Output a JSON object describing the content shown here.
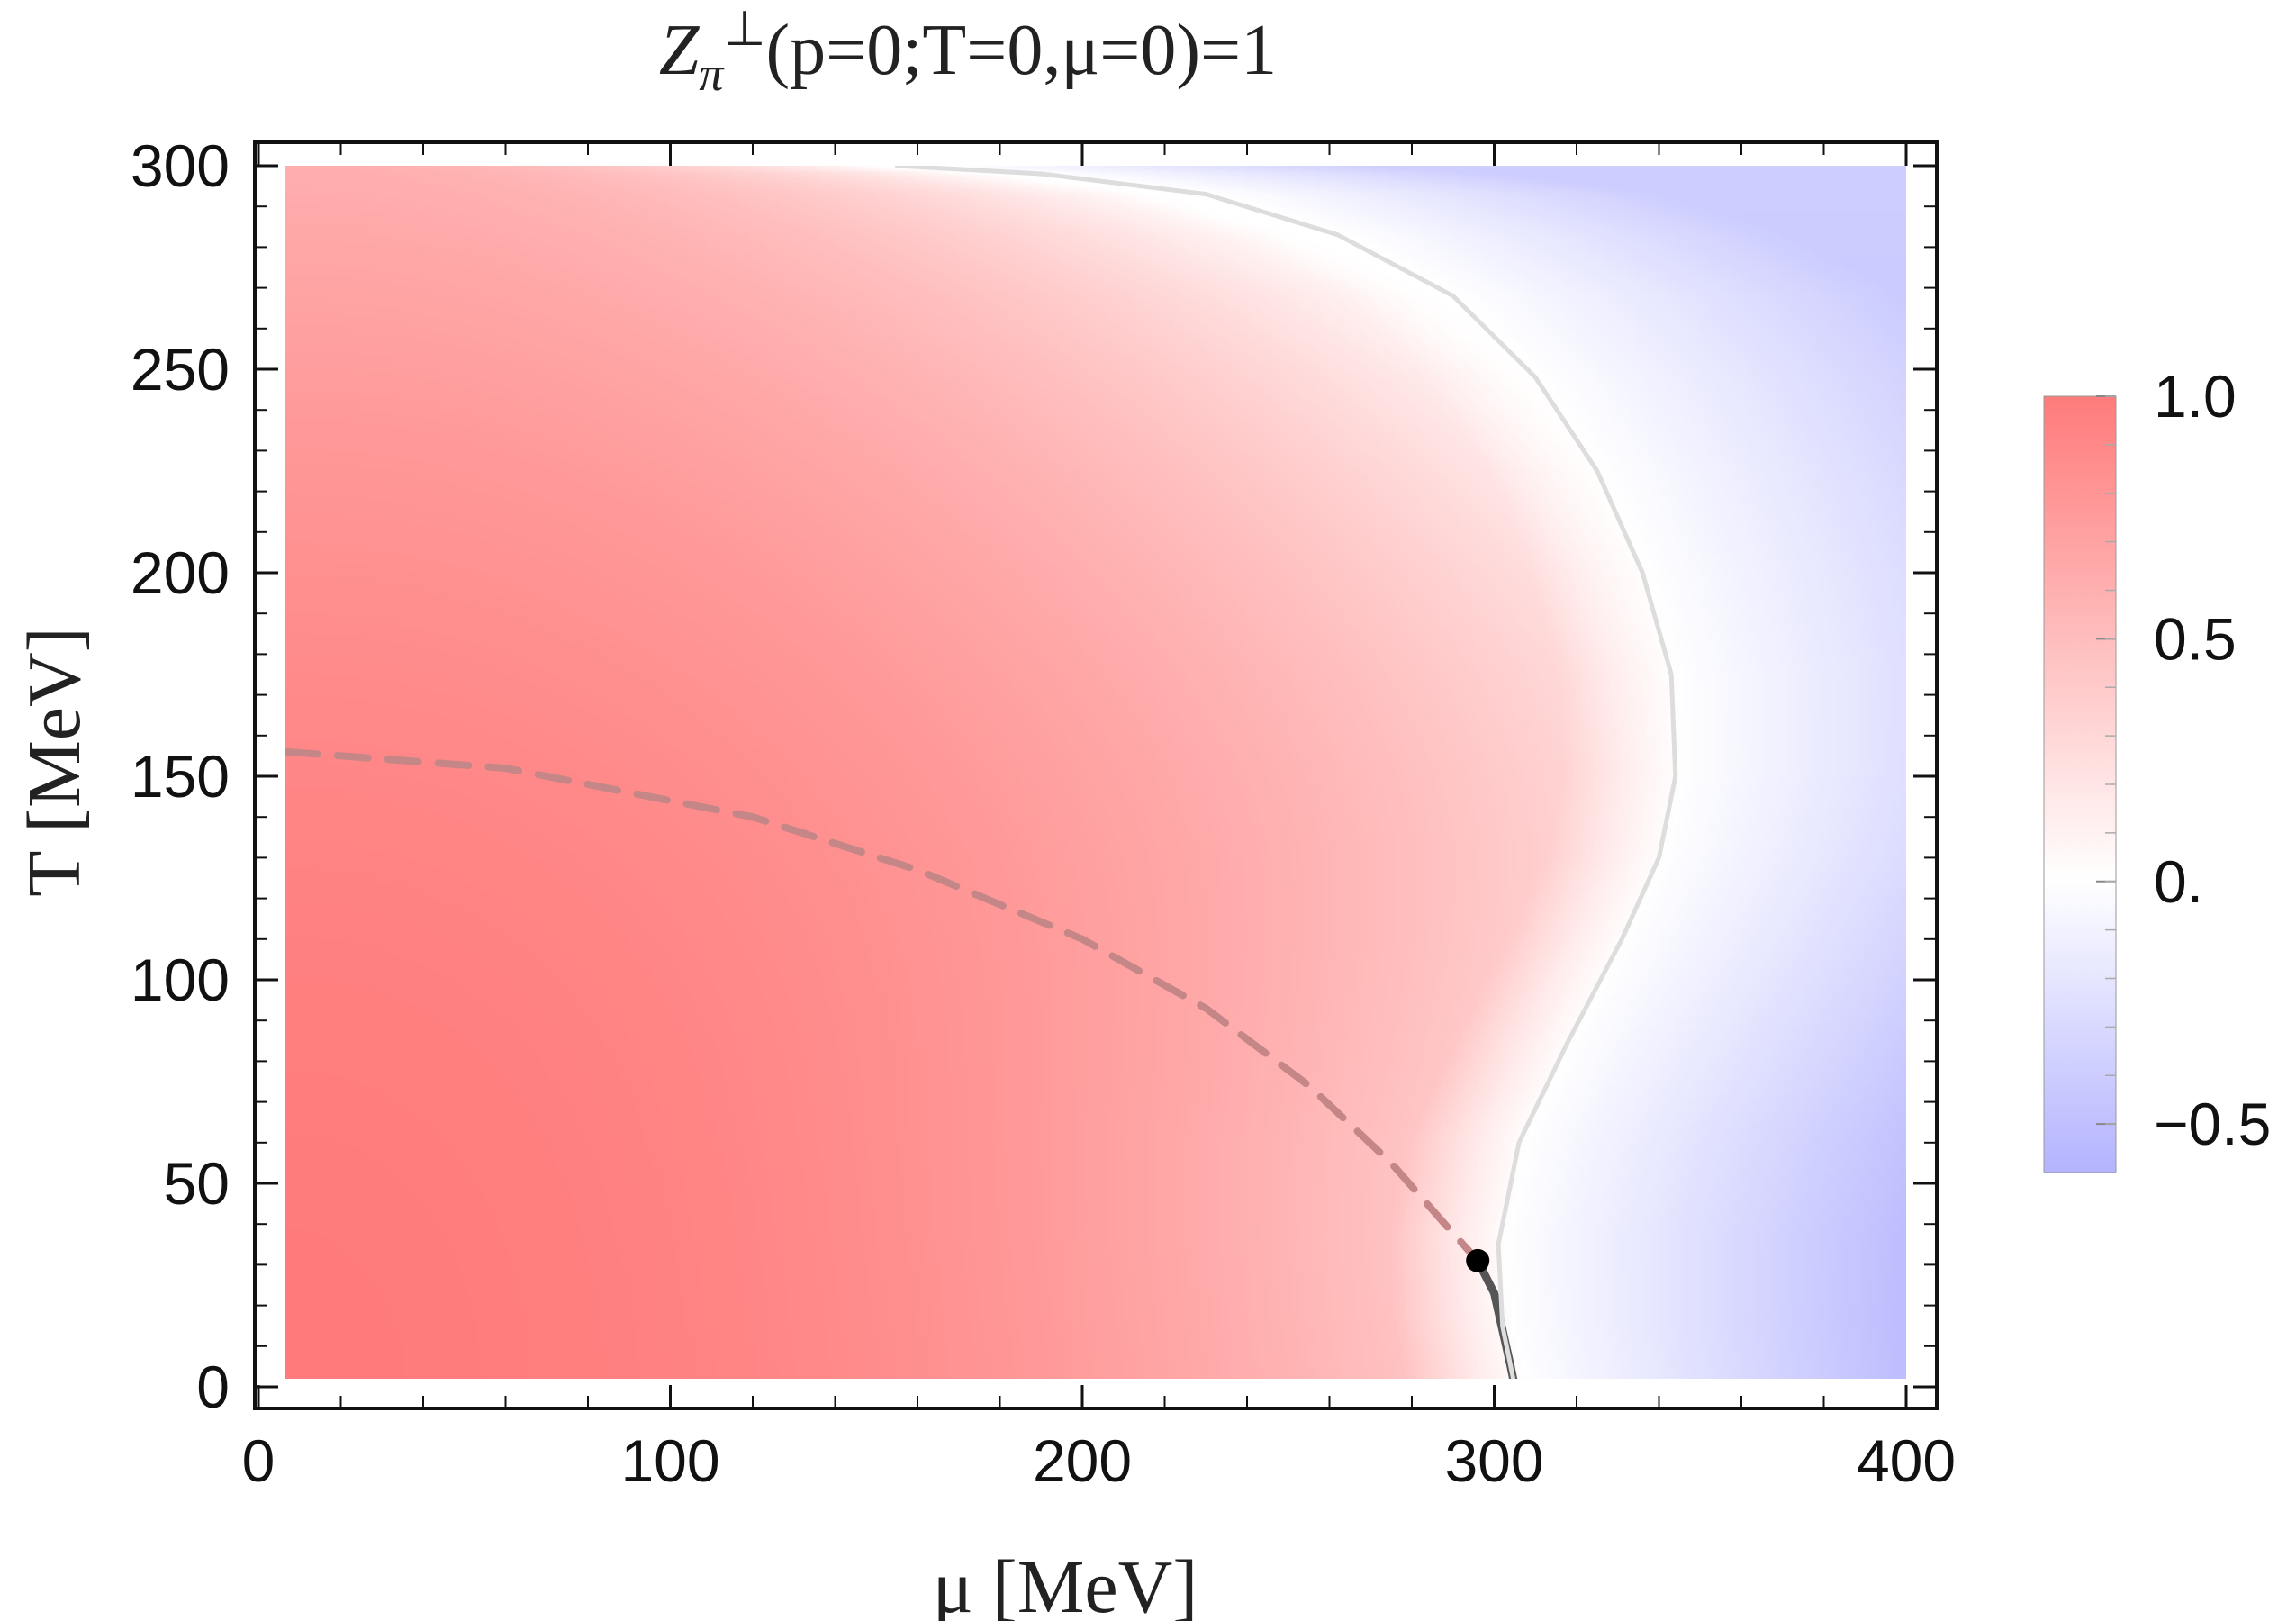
{
  "chart_data": {
    "type": "heatmap",
    "title": "Zπ⊥(p=0;T=0,μ=0)=1",
    "title_parts": {
      "symbol": "Z",
      "subscript": "π",
      "superscript": "⊥",
      "args": "(p=0;T=0,μ=0)=1"
    },
    "xlabel": "μ [MeV]",
    "ylabel": "T [MeV]",
    "xlim": [
      0,
      400
    ],
    "ylim": [
      0,
      300
    ],
    "x_ticks": [
      "0",
      "100",
      "200",
      "300",
      "400"
    ],
    "y_ticks": [
      "0",
      "50",
      "100",
      "150",
      "200",
      "250",
      "300"
    ],
    "colorbar": {
      "ticks": [
        "1.0",
        "0.5",
        "0.",
        "−0.5"
      ],
      "tick_values": [
        1.0,
        0.5,
        0.0,
        -0.5
      ],
      "range": [
        -0.6,
        1.0
      ],
      "positive_color": "#ff7b7b",
      "zero_color": "#ffffff",
      "negative_color": "#b3b3ff"
    },
    "series": [
      {
        "style": "dashed",
        "color": "#c48686",
        "points": [
          [
            7,
            156
          ],
          [
            60,
            152
          ],
          [
            120,
            140
          ],
          [
            160,
            127
          ],
          [
            200,
            110
          ],
          [
            230,
            93
          ],
          [
            255,
            74
          ],
          [
            275,
            55
          ],
          [
            288,
            40
          ],
          [
            296,
            31
          ]
        ]
      },
      {
        "style": "solid",
        "color": "#555555",
        "points": [
          [
            296,
            31
          ],
          [
            300,
            23
          ],
          [
            302,
            14
          ],
          [
            304,
            5
          ],
          [
            305,
            0
          ]
        ]
      },
      {
        "style": "solid",
        "color": "#dddddd",
        "points": [
          [
            305,
            0
          ],
          [
            302,
            15
          ],
          [
            301,
            35
          ],
          [
            306,
            60
          ],
          [
            318,
            85
          ],
          [
            331,
            110
          ],
          [
            340,
            130
          ],
          [
            344,
            150
          ],
          [
            343,
            175
          ],
          [
            336,
            200
          ],
          [
            325,
            225
          ],
          [
            310,
            248
          ],
          [
            290,
            268
          ],
          [
            262,
            283
          ],
          [
            230,
            293
          ],
          [
            190,
            298
          ],
          [
            155,
            300
          ]
        ]
      }
    ],
    "critical_point": [
      296,
      31
    ],
    "grid": false,
    "legend": "colorbar-right"
  }
}
